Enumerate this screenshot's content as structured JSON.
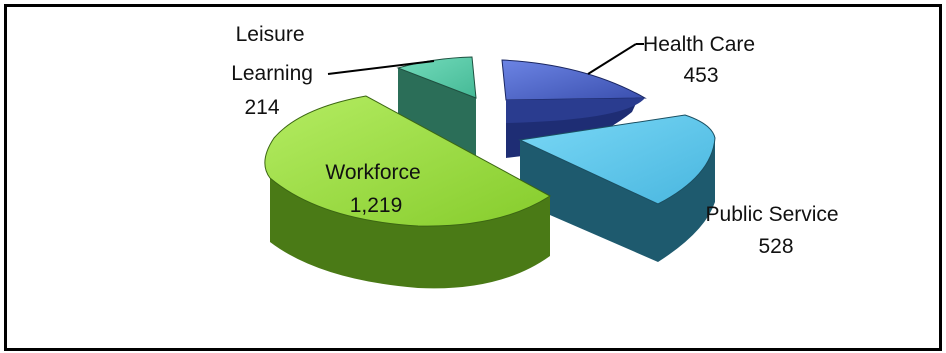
{
  "chart_data": {
    "type": "pie",
    "style": "3d-exploded",
    "legend": "none",
    "slices": [
      {
        "name": "Health Care",
        "value": 453,
        "label_value": "453",
        "label_lines": [
          "Health Care"
        ],
        "color": "#4a63c8"
      },
      {
        "name": "Public Service",
        "value": 528,
        "label_value": "528",
        "label_lines": [
          "Public Service"
        ],
        "color": "#5bc8ee"
      },
      {
        "name": "Workforce",
        "value": 1219,
        "label_value": "1,219",
        "label_lines": [
          "Workforce"
        ],
        "color": "#97dc3a"
      },
      {
        "name": "Leisure Learning",
        "value": 214,
        "label_value": "214",
        "label_lines": [
          "Leisure",
          "Learning"
        ],
        "color": "#5ccfae"
      }
    ]
  }
}
